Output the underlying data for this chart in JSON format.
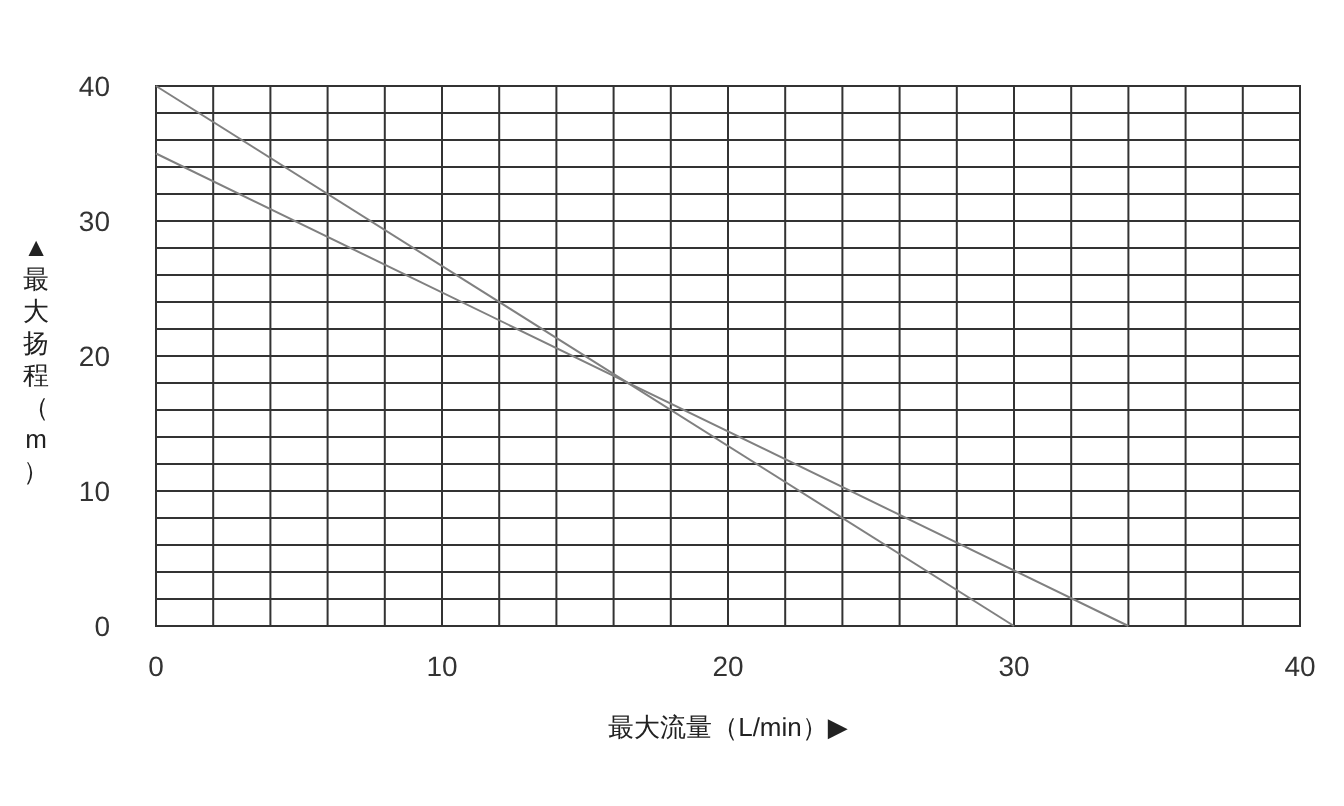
{
  "chart_data": {
    "type": "line",
    "xlabel": "最大流量（L/min）▶",
    "ylabel": "▲最大扬程（m）",
    "xlim": [
      0,
      40
    ],
    "ylim": [
      0,
      40
    ],
    "xticks": [
      0,
      {
        "value": 2,
        "label": null
      },
      {
        "value": 4,
        "label": null
      },
      {
        "value": 6,
        "label": null
      },
      {
        "value": 8,
        "label": null
      },
      10,
      {
        "value": 12,
        "label": null
      },
      {
        "value": 14,
        "label": null
      },
      {
        "value": 16,
        "label": null
      },
      {
        "value": 18,
        "label": null
      },
      20,
      {
        "value": 22,
        "label": null
      },
      {
        "value": 24,
        "label": null
      },
      {
        "value": 26,
        "label": null
      },
      {
        "value": 28,
        "label": null
      },
      30,
      {
        "value": 32,
        "label": null
      },
      {
        "value": 34,
        "label": null
      },
      {
        "value": 36,
        "label": null
      },
      {
        "value": 38,
        "label": null
      },
      40
    ],
    "yticks": [
      0,
      {
        "value": 2,
        "label": null
      },
      {
        "value": 4,
        "label": null
      },
      {
        "value": 6,
        "label": null
      },
      {
        "value": 8,
        "label": null
      },
      10,
      {
        "value": 12,
        "label": null
      },
      {
        "value": 14,
        "label": null
      },
      {
        "value": 16,
        "label": null
      },
      {
        "value": 18,
        "label": null
      },
      20,
      {
        "value": 22,
        "label": null
      },
      {
        "value": 24,
        "label": null
      },
      {
        "value": 26,
        "label": null
      },
      {
        "value": 28,
        "label": null
      },
      30,
      {
        "value": 32,
        "label": null
      },
      {
        "value": 34,
        "label": null
      },
      {
        "value": 36,
        "label": null
      },
      {
        "value": 38,
        "label": null
      },
      40
    ],
    "grid": true,
    "marker": "none",
    "series": [
      {
        "color": "#808080",
        "x": [
          0,
          30
        ],
        "values": [
          40,
          0
        ]
      },
      {
        "color": "#808080",
        "x": [
          0,
          34
        ],
        "values": [
          35,
          0
        ]
      }
    ]
  }
}
